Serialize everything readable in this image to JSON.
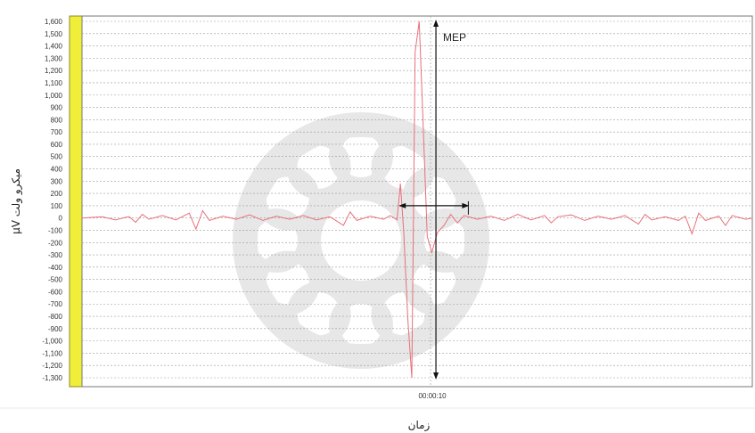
{
  "chart_data": {
    "type": "line",
    "title": "",
    "xlabel": "زمان",
    "ylabel": "μV میکرو ولت",
    "ylim": [
      -1300,
      1600
    ],
    "yticks": [
      1600,
      1500,
      1400,
      1300,
      1200,
      1100,
      1000,
      900,
      800,
      700,
      600,
      500,
      400,
      300,
      200,
      100,
      0,
      -100,
      -200,
      -300,
      -400,
      -500,
      -600,
      -700,
      -800,
      -900,
      -1000,
      -1100,
      -1200,
      -1300
    ],
    "ytick_labels": [
      "1,600",
      "1,500",
      "1,400",
      "1,300",
      "1,200",
      "1,100",
      "1,000",
      "900",
      "800",
      "700",
      "600",
      "500",
      "400",
      "300",
      "200",
      "100",
      "0",
      "-100",
      "-200",
      "-300",
      "-400",
      "-500",
      "-600",
      "-700",
      "-800",
      "-900",
      "-1,000",
      "-1,100",
      "-1,200",
      "-1,300"
    ],
    "xlim": [
      0,
      100
    ],
    "xtick_labels": [
      {
        "x": 52,
        "label": "00:00:10"
      }
    ],
    "grid": true,
    "series": [
      {
        "color": "#e8707a",
        "points": [
          [
            0,
            0
          ],
          [
            3,
            10
          ],
          [
            5,
            -15
          ],
          [
            7,
            12
          ],
          [
            8,
            -35
          ],
          [
            9,
            30
          ],
          [
            10,
            -10
          ],
          [
            12,
            20
          ],
          [
            14,
            -15
          ],
          [
            16,
            40
          ],
          [
            17,
            -90
          ],
          [
            18,
            60
          ],
          [
            19,
            -20
          ],
          [
            21,
            15
          ],
          [
            23,
            -10
          ],
          [
            25,
            25
          ],
          [
            27,
            -20
          ],
          [
            29,
            15
          ],
          [
            31,
            -10
          ],
          [
            33,
            20
          ],
          [
            35,
            -15
          ],
          [
            37,
            10
          ],
          [
            39,
            -60
          ],
          [
            40,
            50
          ],
          [
            41,
            -20
          ],
          [
            43,
            15
          ],
          [
            45,
            -10
          ],
          [
            46,
            20
          ],
          [
            47,
            -15
          ],
          [
            47.5,
            280
          ],
          [
            48,
            -120
          ],
          [
            48.6,
            -820
          ],
          [
            49.2,
            -1300
          ],
          [
            49.7,
            1350
          ],
          [
            50.3,
            1600
          ],
          [
            50.8,
            900
          ],
          [
            51.5,
            -150
          ],
          [
            52.2,
            -280
          ],
          [
            53,
            -120
          ],
          [
            54,
            -60
          ],
          [
            55,
            30
          ],
          [
            56,
            -40
          ],
          [
            57,
            20
          ],
          [
            59,
            -10
          ],
          [
            61,
            15
          ],
          [
            63,
            -20
          ],
          [
            65,
            30
          ],
          [
            67,
            -15
          ],
          [
            69,
            20
          ],
          [
            70,
            -40
          ],
          [
            71,
            10
          ],
          [
            73,
            25
          ],
          [
            75,
            -20
          ],
          [
            77,
            15
          ],
          [
            79,
            -10
          ],
          [
            81,
            20
          ],
          [
            83,
            -50
          ],
          [
            84,
            30
          ],
          [
            85,
            -15
          ],
          [
            87,
            10
          ],
          [
            89,
            -20
          ],
          [
            90,
            15
          ],
          [
            91,
            -130
          ],
          [
            92,
            40
          ],
          [
            93,
            -20
          ],
          [
            95,
            15
          ],
          [
            96,
            -60
          ],
          [
            97,
            20
          ],
          [
            99,
            -10
          ],
          [
            100,
            0
          ]
        ]
      }
    ],
    "annotations": [
      {
        "text": "MEP",
        "type": "vertical-arrow",
        "x": 52.8,
        "y_from": 1600,
        "y_to": -1300
      },
      {
        "text": "",
        "type": "horizontal-arrow",
        "y": 100,
        "x_from": 47.5,
        "x_to": 57.5
      }
    ],
    "accent_colors": {
      "left_band": "#f1ee3a",
      "trace": "#e8707a",
      "grid": "#9a9a9a"
    }
  }
}
